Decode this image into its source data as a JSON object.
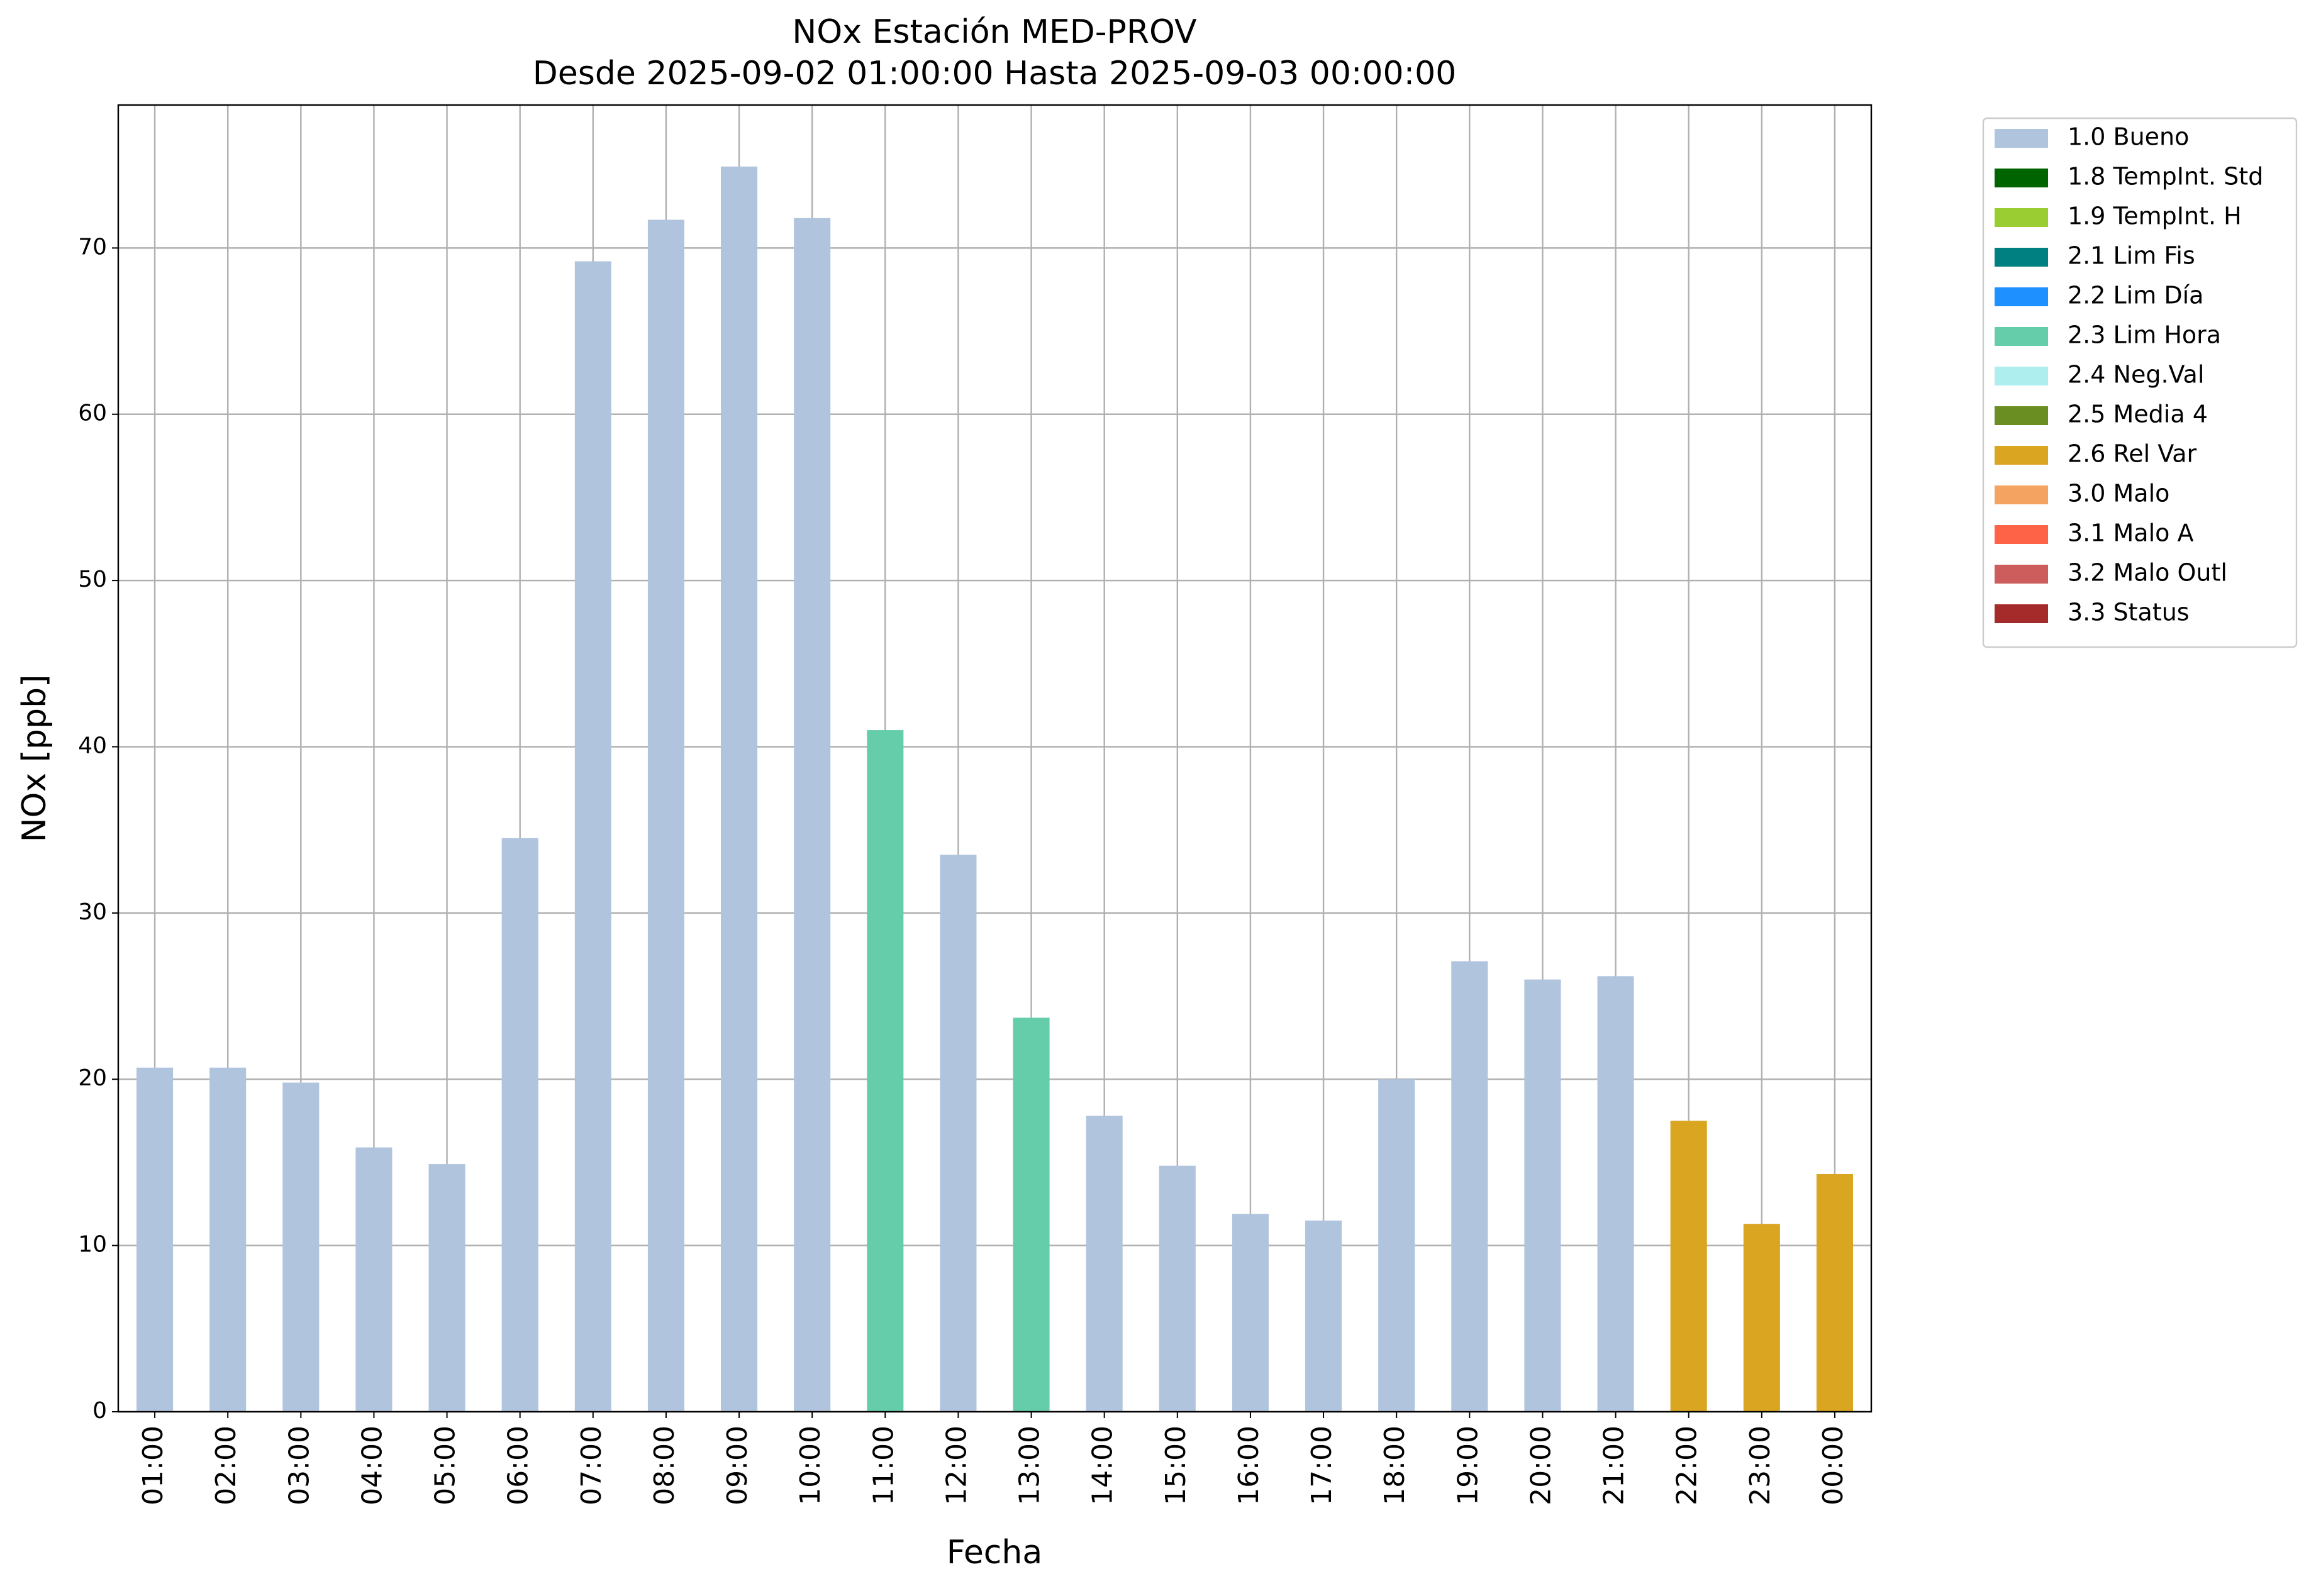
{
  "chart_data": {
    "type": "bar",
    "stacked": true,
    "title": "NOx Estación MED-PROV",
    "subtitle": "Desde 2025-09-02 01:00:00 Hasta 2025-09-03 00:00:00",
    "x_label": "Fecha",
    "y_label": "NOx [ppb]",
    "categories": [
      "01:00",
      "02:00",
      "03:00",
      "04:00",
      "05:00",
      "06:00",
      "07:00",
      "08:00",
      "09:00",
      "10:00",
      "11:00",
      "12:00",
      "13:00",
      "14:00",
      "15:00",
      "16:00",
      "17:00",
      "18:00",
      "19:00",
      "20:00",
      "21:00",
      "22:00",
      "23:00",
      "00:00"
    ],
    "series": [
      {
        "name": "1.0 Bueno",
        "color": "#b0c4de",
        "values": [
          20.7,
          20.7,
          19.8,
          15.9,
          14.9,
          34.5,
          69.2,
          71.7,
          74.9,
          71.8,
          null,
          33.5,
          null,
          17.8,
          14.8,
          11.9,
          11.5,
          20.0,
          27.1,
          26.0,
          26.2,
          null,
          null,
          null
        ]
      },
      {
        "name": "1.8 TempInt. Std",
        "color": "#006400",
        "values": [
          null,
          null,
          null,
          null,
          null,
          null,
          null,
          null,
          null,
          null,
          null,
          null,
          null,
          null,
          null,
          null,
          null,
          null,
          null,
          null,
          null,
          null,
          null,
          null
        ]
      },
      {
        "name": "1.9 TempInt. H",
        "color": "#9acd32",
        "values": [
          null,
          null,
          null,
          null,
          null,
          null,
          null,
          null,
          null,
          null,
          null,
          null,
          null,
          null,
          null,
          null,
          null,
          null,
          null,
          null,
          null,
          null,
          null,
          null
        ]
      },
      {
        "name": "2.1 Lim Fis",
        "color": "#008080",
        "values": [
          null,
          null,
          null,
          null,
          null,
          null,
          null,
          null,
          null,
          null,
          null,
          null,
          null,
          null,
          null,
          null,
          null,
          null,
          null,
          null,
          null,
          null,
          null,
          null
        ]
      },
      {
        "name": "2.2 Lim Día",
        "color": "#1e90ff",
        "values": [
          null,
          null,
          null,
          null,
          null,
          null,
          null,
          null,
          null,
          null,
          null,
          null,
          null,
          null,
          null,
          null,
          null,
          null,
          null,
          null,
          null,
          null,
          null,
          null
        ]
      },
      {
        "name": "2.3 Lim Hora",
        "color": "#66cdaa",
        "values": [
          null,
          null,
          null,
          null,
          null,
          null,
          null,
          null,
          null,
          null,
          41.0,
          null,
          23.7,
          null,
          null,
          null,
          null,
          null,
          null,
          null,
          null,
          null,
          null,
          null
        ]
      },
      {
        "name": "2.4 Neg.Val",
        "color": "#afeeee",
        "values": [
          null,
          null,
          null,
          null,
          null,
          null,
          null,
          null,
          null,
          null,
          null,
          null,
          null,
          null,
          null,
          null,
          null,
          null,
          null,
          null,
          null,
          null,
          null,
          null
        ]
      },
      {
        "name": "2.5 Media 4",
        "color": "#6b8e23",
        "values": [
          null,
          null,
          null,
          null,
          null,
          null,
          null,
          null,
          null,
          null,
          null,
          null,
          null,
          null,
          null,
          null,
          null,
          null,
          null,
          null,
          null,
          null,
          null,
          null
        ]
      },
      {
        "name": "2.6 Rel Var",
        "color": "#daa520",
        "values": [
          null,
          null,
          null,
          null,
          null,
          null,
          null,
          null,
          null,
          null,
          null,
          null,
          null,
          null,
          null,
          null,
          null,
          null,
          null,
          null,
          null,
          17.5,
          11.3,
          14.3
        ]
      },
      {
        "name": "3.0 Malo",
        "color": "#f4a460",
        "values": [
          null,
          null,
          null,
          null,
          null,
          null,
          null,
          null,
          null,
          null,
          null,
          null,
          null,
          null,
          null,
          null,
          null,
          null,
          null,
          null,
          null,
          null,
          null,
          null
        ]
      },
      {
        "name": "3.1 Malo A",
        "color": "#ff6347",
        "values": [
          null,
          null,
          null,
          null,
          null,
          null,
          null,
          null,
          null,
          null,
          null,
          null,
          null,
          null,
          null,
          null,
          null,
          null,
          null,
          null,
          null,
          null,
          null,
          null
        ]
      },
      {
        "name": "3.2 Malo Outl",
        "color": "#cd5c5c",
        "values": [
          null,
          null,
          null,
          null,
          null,
          null,
          null,
          null,
          null,
          null,
          null,
          null,
          null,
          null,
          null,
          null,
          null,
          null,
          null,
          null,
          null,
          null,
          null,
          null
        ]
      },
      {
        "name": "3.3 Status",
        "color": "#a52a2a",
        "values": [
          null,
          null,
          null,
          null,
          null,
          null,
          null,
          null,
          null,
          null,
          null,
          null,
          null,
          null,
          null,
          null,
          null,
          null,
          null,
          null,
          null,
          null,
          null,
          null
        ]
      }
    ],
    "ylim": [
      0,
      78.6
    ],
    "yticks": [
      0,
      10,
      20,
      30,
      40,
      50,
      60,
      70
    ],
    "grid": true,
    "legend": "outside-right"
  }
}
